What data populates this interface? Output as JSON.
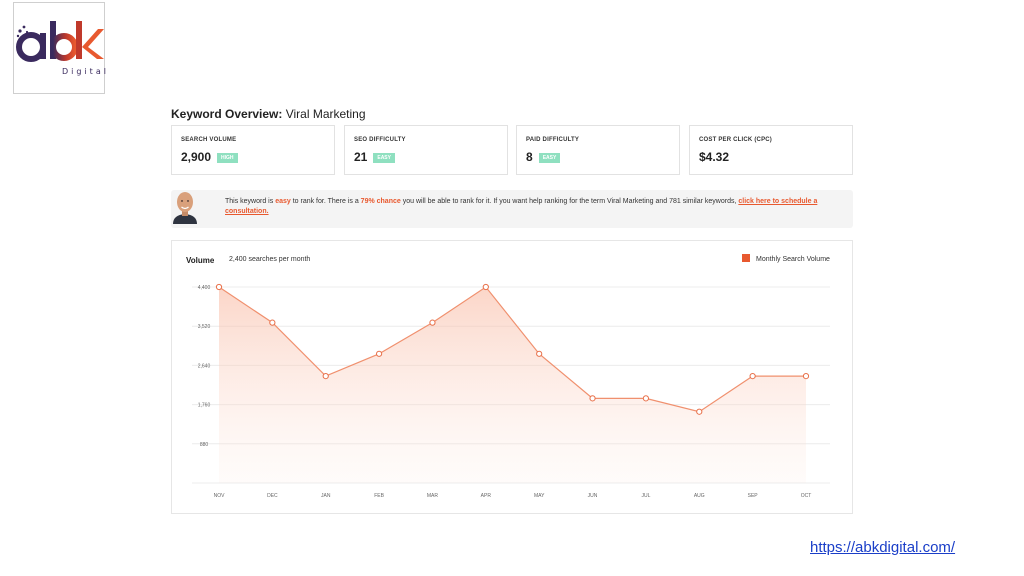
{
  "brand": {
    "logo_text": "abk",
    "logo_subtext": "Digital",
    "colors": {
      "purple": "#3a2a5e",
      "orange": "#e8592f",
      "blue": "#1f6fb5"
    }
  },
  "overview": {
    "title_prefix": "Keyword Overview:",
    "keyword": "Viral Marketing"
  },
  "metrics": [
    {
      "label": "SEARCH VOLUME",
      "value": "2,900",
      "badge": "HIGH"
    },
    {
      "label": "SEO DIFFICULTY",
      "value": "21",
      "badge": "EASY"
    },
    {
      "label": "PAID DIFFICULTY",
      "value": "8",
      "badge": "EASY"
    },
    {
      "label": "COST PER CLICK (CPC)",
      "value": "$4.32",
      "badge": ""
    }
  ],
  "message": {
    "part1": "This keyword is ",
    "easy": "easy",
    "part2": " to rank for. There is a ",
    "chance": "79% chance",
    "part3": " you will be able to rank for it. If you want help ranking for the term Viral Marketing and 781 similar keywords, ",
    "link": "click here to schedule a consultation."
  },
  "chart_data": {
    "type": "area",
    "ylabel": "Volume",
    "subtitle": "2,400 searches per month",
    "legend": "Monthly Search Volume",
    "legend_position": "top-right",
    "categories": [
      "NOV",
      "DEC",
      "JAN",
      "FEB",
      "MAR",
      "APR",
      "MAY",
      "JUN",
      "JUL",
      "AUG",
      "SEP",
      "OCT"
    ],
    "series": [
      {
        "name": "Monthly Search Volume",
        "values": [
          4400,
          3600,
          2400,
          2900,
          3600,
          4400,
          2900,
          1900,
          1900,
          1600,
          2400,
          2400
        ]
      }
    ],
    "y_ticks": [
      4400,
      3520,
      2640,
      1760,
      880
    ],
    "y_tick_labels": [
      "4,400",
      "3,520",
      "2,640",
      "1,760",
      "880"
    ],
    "ylim": [
      0,
      4400
    ],
    "grid": true,
    "line_color": "#f0906e"
  },
  "footer": {
    "url": "https://abkdigital.com/"
  }
}
